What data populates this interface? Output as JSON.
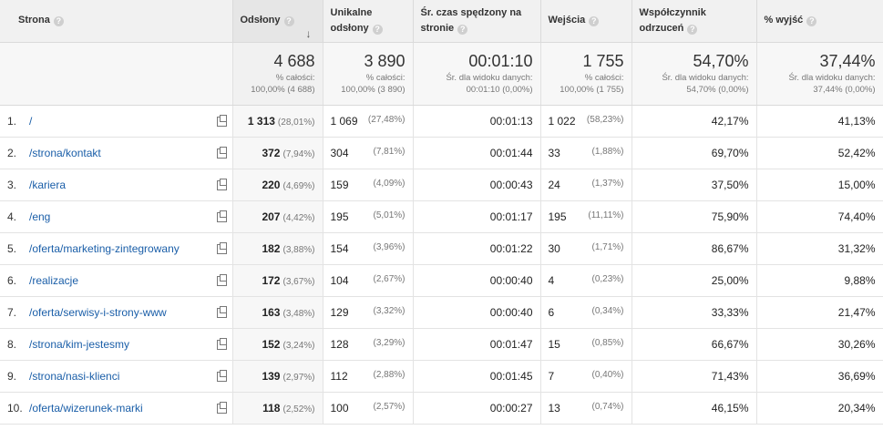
{
  "headers": [
    {
      "label": "Strona",
      "help": "?"
    },
    {
      "label": "Odsłony",
      "help": "?",
      "sort_icon": "↓"
    },
    {
      "label": "Unikalne odsłony",
      "help": "?"
    },
    {
      "label": "Śr. czas spędzony na stronie",
      "help": "?"
    },
    {
      "label": "Wejścia",
      "help": "?"
    },
    {
      "label": "Współczynnik odrzuceń",
      "help": "?"
    },
    {
      "label": "% wyjść",
      "help": "?"
    }
  ],
  "totals": [
    {
      "big": "4 688",
      "sub1": "% całości:",
      "sub2": "100,00% (4 688)"
    },
    {
      "big": "3 890",
      "sub1": "% całości:",
      "sub2": "100,00% (3 890)"
    },
    {
      "big": "00:01:10",
      "sub1": "Śr. dla widoku danych:",
      "sub2": "00:01:10 (0,00%)"
    },
    {
      "big": "1 755",
      "sub1": "% całości:",
      "sub2": "100,00% (1 755)"
    },
    {
      "big": "54,70%",
      "sub1": "Śr. dla widoku danych:",
      "sub2": "54,70% (0,00%)"
    },
    {
      "big": "37,44%",
      "sub1": "Śr. dla widoku danych:",
      "sub2": "37,44% (0,00%)"
    }
  ],
  "rows": [
    {
      "idx": "1.",
      "page": "/",
      "views": "1 313",
      "views_pct": "(28,01%)",
      "unique": "1 069",
      "unique_pct": "(27,48%)",
      "time": "00:01:13",
      "entries": "1 022",
      "entries_pct": "(58,23%)",
      "bounce": "42,17%",
      "exit": "41,13%"
    },
    {
      "idx": "2.",
      "page": "/strona/kontakt",
      "views": "372",
      "views_pct": "(7,94%)",
      "unique": "304",
      "unique_pct": "(7,81%)",
      "time": "00:01:44",
      "entries": "33",
      "entries_pct": "(1,88%)",
      "bounce": "69,70%",
      "exit": "52,42%"
    },
    {
      "idx": "3.",
      "page": "/kariera",
      "views": "220",
      "views_pct": "(4,69%)",
      "unique": "159",
      "unique_pct": "(4,09%)",
      "time": "00:00:43",
      "entries": "24",
      "entries_pct": "(1,37%)",
      "bounce": "37,50%",
      "exit": "15,00%"
    },
    {
      "idx": "4.",
      "page": "/eng",
      "views": "207",
      "views_pct": "(4,42%)",
      "unique": "195",
      "unique_pct": "(5,01%)",
      "time": "00:01:17",
      "entries": "195",
      "entries_pct": "(11,11%)",
      "bounce": "75,90%",
      "exit": "74,40%"
    },
    {
      "idx": "5.",
      "page": "/oferta/marketing-zintegrowany",
      "views": "182",
      "views_pct": "(3,88%)",
      "unique": "154",
      "unique_pct": "(3,96%)",
      "time": "00:01:22",
      "entries": "30",
      "entries_pct": "(1,71%)",
      "bounce": "86,67%",
      "exit": "31,32%"
    },
    {
      "idx": "6.",
      "page": "/realizacje",
      "views": "172",
      "views_pct": "(3,67%)",
      "unique": "104",
      "unique_pct": "(2,67%)",
      "time": "00:00:40",
      "entries": "4",
      "entries_pct": "(0,23%)",
      "bounce": "25,00%",
      "exit": "9,88%"
    },
    {
      "idx": "7.",
      "page": "/oferta/serwisy-i-strony-www",
      "views": "163",
      "views_pct": "(3,48%)",
      "unique": "129",
      "unique_pct": "(3,32%)",
      "time": "00:00:40",
      "entries": "6",
      "entries_pct": "(0,34%)",
      "bounce": "33,33%",
      "exit": "21,47%"
    },
    {
      "idx": "8.",
      "page": "/strona/kim-jestesmy",
      "views": "152",
      "views_pct": "(3,24%)",
      "unique": "128",
      "unique_pct": "(3,29%)",
      "time": "00:01:47",
      "entries": "15",
      "entries_pct": "(0,85%)",
      "bounce": "66,67%",
      "exit": "30,26%"
    },
    {
      "idx": "9.",
      "page": "/strona/nasi-klienci",
      "views": "139",
      "views_pct": "(2,97%)",
      "unique": "112",
      "unique_pct": "(2,88%)",
      "time": "00:01:45",
      "entries": "7",
      "entries_pct": "(0,40%)",
      "bounce": "71,43%",
      "exit": "36,69%"
    },
    {
      "idx": "10.",
      "page": "/oferta/wizerunek-marki",
      "views": "118",
      "views_pct": "(2,52%)",
      "unique": "100",
      "unique_pct": "(2,57%)",
      "time": "00:00:27",
      "entries": "13",
      "entries_pct": "(0,74%)",
      "bounce": "46,15%",
      "exit": "20,34%"
    }
  ],
  "colors": {
    "link": "#1a5ea8",
    "header_bg": "#f1f1f1",
    "sorted_bg": "#e6e6e6"
  },
  "icons": {
    "help": "question-mark-icon",
    "sort": "sort-down-arrow-icon",
    "open": "open-in-new-window-icon"
  }
}
